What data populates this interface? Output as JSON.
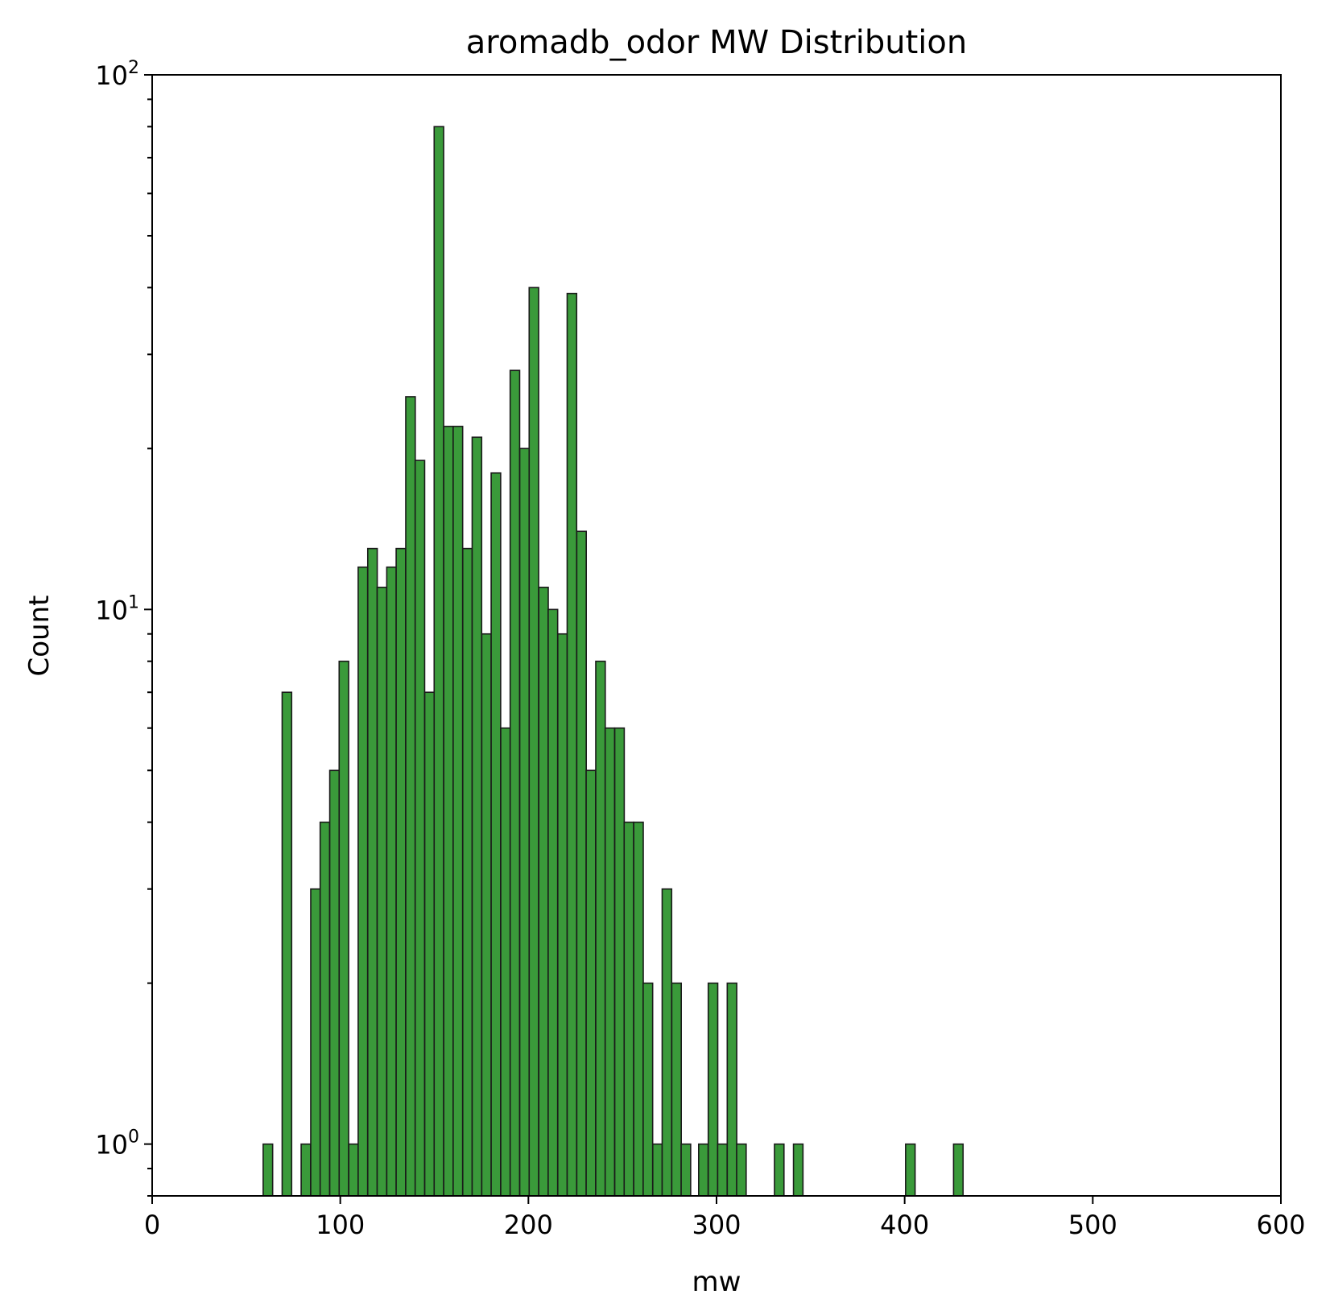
{
  "colors": {
    "bar_fill": "#3a9a3a",
    "bar_edge": "#1a1a1a",
    "frame": "#000000"
  },
  "chart_data": {
    "type": "bar",
    "title": "aromadb_odor MW Distribution",
    "xlabel": "mw",
    "ylabel": "Count",
    "xlim": [
      0,
      600
    ],
    "ylim": [
      0.8,
      100
    ],
    "yscale": "log",
    "grid": false,
    "x_ticks": [
      "0",
      "100",
      "200",
      "300",
      "400",
      "500",
      "600"
    ],
    "y_ticks": [
      {
        "base": "10",
        "exp": "0"
      },
      {
        "base": "10",
        "exp": "1"
      },
      {
        "base": "10",
        "exp": "2"
      }
    ],
    "bin_width": 5.05,
    "bin_starts": [
      59.0,
      69.1,
      79.2,
      84.3,
      89.3,
      94.4,
      99.4,
      104.5,
      109.5,
      114.6,
      119.6,
      124.7,
      129.7,
      134.8,
      139.8,
      144.9,
      149.9,
      155.0,
      160.0,
      165.1,
      170.1,
      175.2,
      180.2,
      185.3,
      190.3,
      195.4,
      200.4,
      205.5,
      210.5,
      215.6,
      220.6,
      225.7,
      230.7,
      235.8,
      240.8,
      245.9,
      250.9,
      256.0,
      261.0,
      266.1,
      271.1,
      276.2,
      281.2,
      290.5,
      295.6,
      300.6,
      305.7,
      310.7,
      330.8,
      340.9,
      400.5,
      426.0
    ],
    "counts": [
      1,
      7,
      1,
      3,
      4,
      5,
      8,
      1,
      12,
      13,
      11,
      12,
      13,
      25,
      19,
      7,
      80,
      22,
      22,
      13,
      21,
      9,
      18,
      6,
      28,
      20,
      40,
      11,
      10,
      9,
      39,
      14,
      5,
      8,
      6,
      6,
      4,
      4,
      2,
      1,
      3,
      2,
      1,
      1,
      2,
      1,
      2,
      1,
      1,
      1,
      1,
      1
    ]
  }
}
